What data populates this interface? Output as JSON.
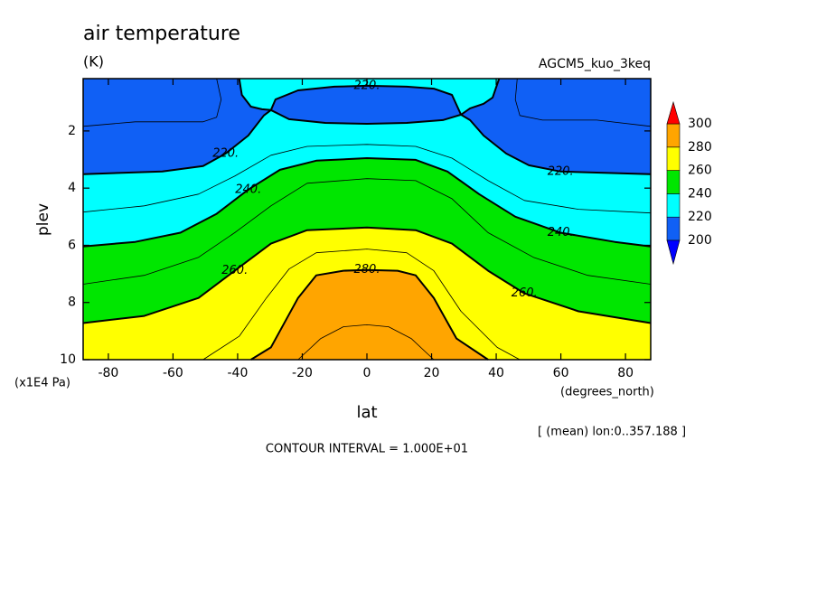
{
  "chart_data": {
    "type": "contour",
    "title": "air temperature",
    "units": "(K)",
    "subtitle": "AGCM5_kuo_3keq",
    "xlabel": "lat",
    "xunits": "(degrees_north)",
    "ylabel": "plev",
    "yunits": "(x1E4 Pa)",
    "note": "[ (mean) lon:0..357.188 ]",
    "contour_interval": "CONTOUR INTERVAL = 1.000E+01",
    "xlim": [
      -87.8,
      87.8
    ],
    "xticks": [
      -80,
      -60,
      -40,
      -20,
      0,
      20,
      40,
      60,
      80
    ],
    "ylim": [
      10,
      0.17
    ],
    "yticks": [
      2,
      4,
      6,
      8,
      10
    ],
    "colorbar": {
      "levels": [
        200,
        220,
        240,
        260,
        280,
        300
      ],
      "colors": [
        "#0000ff",
        "#1060f5",
        "#00ffff",
        "#00e600",
        "#ffff00",
        "#ffa500",
        "#ff0000"
      ]
    },
    "contours": [
      {
        "level": {
          "value": 220,
          "label": "220."
        },
        "lat": [
          -87.8,
          -63.3,
          -50.7,
          -43.7,
          -36.7,
          -31.9,
          -29.7,
          -32.5,
          -35.9,
          -38.7,
          -39.5
        ],
        "plev": [
          3.51,
          3.42,
          3.23,
          2.79,
          2.16,
          1.46,
          1.27,
          1.24,
          1.15,
          0.74,
          0.17
        ]
      },
      {
        "level": {
          "value": 220,
          "label": "220."
        },
        "lat": [
          87.8,
          59.9,
          50.1,
          43.1,
          36.1,
          31.9,
          29.1,
          31.9,
          36.1,
          38.9,
          40.9
        ],
        "plev": [
          3.51,
          3.42,
          3.2,
          2.79,
          2.16,
          1.62,
          1.43,
          1.21,
          1.05,
          0.83,
          0.17
        ]
      },
      {
        "level": {
          "value": 220,
          "label": "220."
        },
        "lat": [
          -29.7,
          -28.3,
          -21.3,
          -10.1,
          0,
          12.3,
          20.7,
          26.3,
          29.1,
          23.5,
          12.3,
          0,
          -12.9,
          -24.1,
          -29.7
        ],
        "plev": [
          1.27,
          0.9,
          0.58,
          0.45,
          0.42,
          0.45,
          0.52,
          0.74,
          1.43,
          1.62,
          1.72,
          1.75,
          1.72,
          1.59,
          1.27
        ]
      },
      {
        "level": {
          "value": 240,
          "label": "240."
        },
        "lat": [
          -87.8,
          -71.7,
          -57.7,
          -46.5,
          -36.7,
          -26.9,
          -15.7,
          0,
          15.1,
          24.9,
          34.7,
          45.9,
          59.9,
          76.7,
          87.8
        ],
        "plev": [
          6.04,
          5.88,
          5.56,
          4.9,
          4.05,
          3.36,
          3.04,
          2.95,
          3.01,
          3.42,
          4.21,
          5.0,
          5.56,
          5.88,
          6.04
        ]
      },
      {
        "level": {
          "value": 260,
          "label": "260."
        },
        "lat": [
          -87.8,
          -68.9,
          -52.1,
          -40.9,
          -29.7,
          -18.5,
          0,
          15.1,
          26.3,
          37.5,
          48.7,
          65.5,
          87.8
        ],
        "plev": [
          8.72,
          8.47,
          7.84,
          6.89,
          5.94,
          5.47,
          5.38,
          5.47,
          5.94,
          6.89,
          7.68,
          8.31,
          8.72
        ]
      },
      {
        "level": {
          "value": 280,
          "label": "280."
        },
        "lat": [
          -35.9,
          -29.7,
          -21.3,
          -15.7,
          -7.3,
          0,
          9.5,
          15.1,
          20.7,
          27.7,
          37.5
        ],
        "plev": [
          10,
          9.57,
          7.84,
          7.05,
          6.89,
          6.86,
          6.89,
          7.05,
          7.84,
          9.26,
          10
        ]
      },
      {
        "level": 230,
        "lat": [
          -87.8,
          -68.9,
          -52.1,
          -40.9,
          -29.7,
          -18.5,
          0,
          15.1,
          26.3,
          37.5,
          48.7,
          65.5,
          87.8
        ],
        "plev": [
          4.84,
          4.62,
          4.21,
          3.58,
          2.85,
          2.54,
          2.47,
          2.54,
          2.95,
          3.74,
          4.43,
          4.74,
          4.87
        ]
      },
      {
        "level": 250,
        "lat": [
          -87.8,
          -68.9,
          -52.1,
          -40.9,
          -29.7,
          -18.5,
          0,
          15.1,
          26.3,
          37.5,
          51.5,
          68.3,
          87.8
        ],
        "plev": [
          7.36,
          7.05,
          6.42,
          5.56,
          4.62,
          3.83,
          3.67,
          3.74,
          4.37,
          5.56,
          6.42,
          7.05,
          7.36
        ]
      },
      {
        "level": 270,
        "lat": [
          -50.7,
          -39.5,
          -31.1,
          -24.1,
          -15.7,
          0,
          12.3,
          20.7,
          29.1,
          40.3,
          47.3
        ],
        "plev": [
          10,
          9.18,
          7.84,
          6.83,
          6.26,
          6.13,
          6.26,
          6.89,
          8.31,
          9.57,
          10
        ]
      },
      {
        "level": 290,
        "lat": [
          -21.3,
          -14.3,
          -7.3,
          0,
          6.7,
          13.7,
          20.7
        ],
        "plev": [
          10,
          9.26,
          8.85,
          8.78,
          8.85,
          9.26,
          10
        ]
      },
      {
        "level": 210,
        "lat": [
          -46.5,
          -45.1,
          -46.5,
          -50.7,
          -71.7,
          -87.8
        ],
        "plev": [
          0.17,
          0.9,
          1.52,
          1.68,
          1.68,
          1.84
        ]
      },
      {
        "level": 210,
        "lat": [
          46.5,
          45.9,
          47.3,
          54.3,
          71.1,
          87.8
        ],
        "plev": [
          0.17,
          0.9,
          1.46,
          1.62,
          1.62,
          1.84
        ]
      }
    ]
  }
}
